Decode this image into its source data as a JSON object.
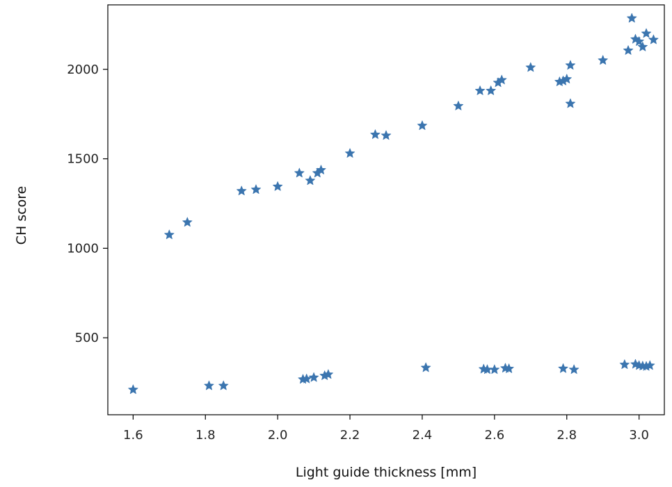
{
  "chart_data": {
    "type": "scatter",
    "marker": "star",
    "marker_color": "#3b75af",
    "title": "",
    "xlabel": "Light guide thickness [mm]",
    "ylabel": "CH score",
    "xlim": [
      1.53,
      3.07
    ],
    "ylim": [
      70,
      2360
    ],
    "grid": false,
    "x_ticks": [
      1.6,
      1.8,
      2.0,
      2.2,
      2.4,
      2.6,
      2.8,
      3.0
    ],
    "x_tick_labels": [
      "1.6",
      "1.8",
      "2.0",
      "2.2",
      "2.4",
      "2.6",
      "2.8",
      "3.0"
    ],
    "y_ticks": [
      500,
      1000,
      1500,
      2000
    ],
    "y_tick_labels": [
      "500",
      "1000",
      "1500",
      "2000"
    ],
    "series": [
      {
        "points": [
          [
            1.7,
            1075
          ],
          [
            1.75,
            1145
          ],
          [
            1.9,
            1320
          ],
          [
            1.94,
            1328
          ],
          [
            2.0,
            1345
          ],
          [
            2.06,
            1420
          ],
          [
            2.09,
            1378
          ],
          [
            2.11,
            1420
          ],
          [
            2.12,
            1437
          ],
          [
            2.2,
            1530
          ],
          [
            2.27,
            1635
          ],
          [
            2.3,
            1630
          ],
          [
            2.4,
            1685
          ],
          [
            2.5,
            1795
          ],
          [
            2.56,
            1880
          ],
          [
            2.59,
            1880
          ],
          [
            2.61,
            1925
          ],
          [
            2.62,
            1940
          ],
          [
            2.7,
            2010
          ],
          [
            2.78,
            1930
          ],
          [
            2.79,
            1935
          ],
          [
            2.8,
            1945
          ],
          [
            2.81,
            2022
          ],
          [
            2.81,
            1808
          ],
          [
            2.9,
            2050
          ],
          [
            2.97,
            2105
          ],
          [
            2.98,
            2285
          ],
          [
            2.99,
            2168
          ],
          [
            3.0,
            2155
          ],
          [
            3.01,
            2125
          ],
          [
            3.02,
            2200
          ],
          [
            3.04,
            2165
          ]
        ]
      },
      {
        "points": [
          [
            1.6,
            210
          ],
          [
            1.81,
            232
          ],
          [
            1.85,
            232
          ],
          [
            2.07,
            268
          ],
          [
            2.08,
            270
          ],
          [
            2.1,
            278
          ],
          [
            2.13,
            288
          ],
          [
            2.14,
            295
          ],
          [
            2.41,
            333
          ],
          [
            2.57,
            325
          ],
          [
            2.58,
            322
          ],
          [
            2.6,
            322
          ],
          [
            2.63,
            330
          ],
          [
            2.64,
            327
          ],
          [
            2.79,
            328
          ],
          [
            2.82,
            322
          ],
          [
            2.96,
            350
          ],
          [
            2.99,
            352
          ],
          [
            3.0,
            345
          ],
          [
            3.01,
            342
          ],
          [
            3.02,
            340
          ],
          [
            3.03,
            345
          ]
        ]
      }
    ]
  }
}
